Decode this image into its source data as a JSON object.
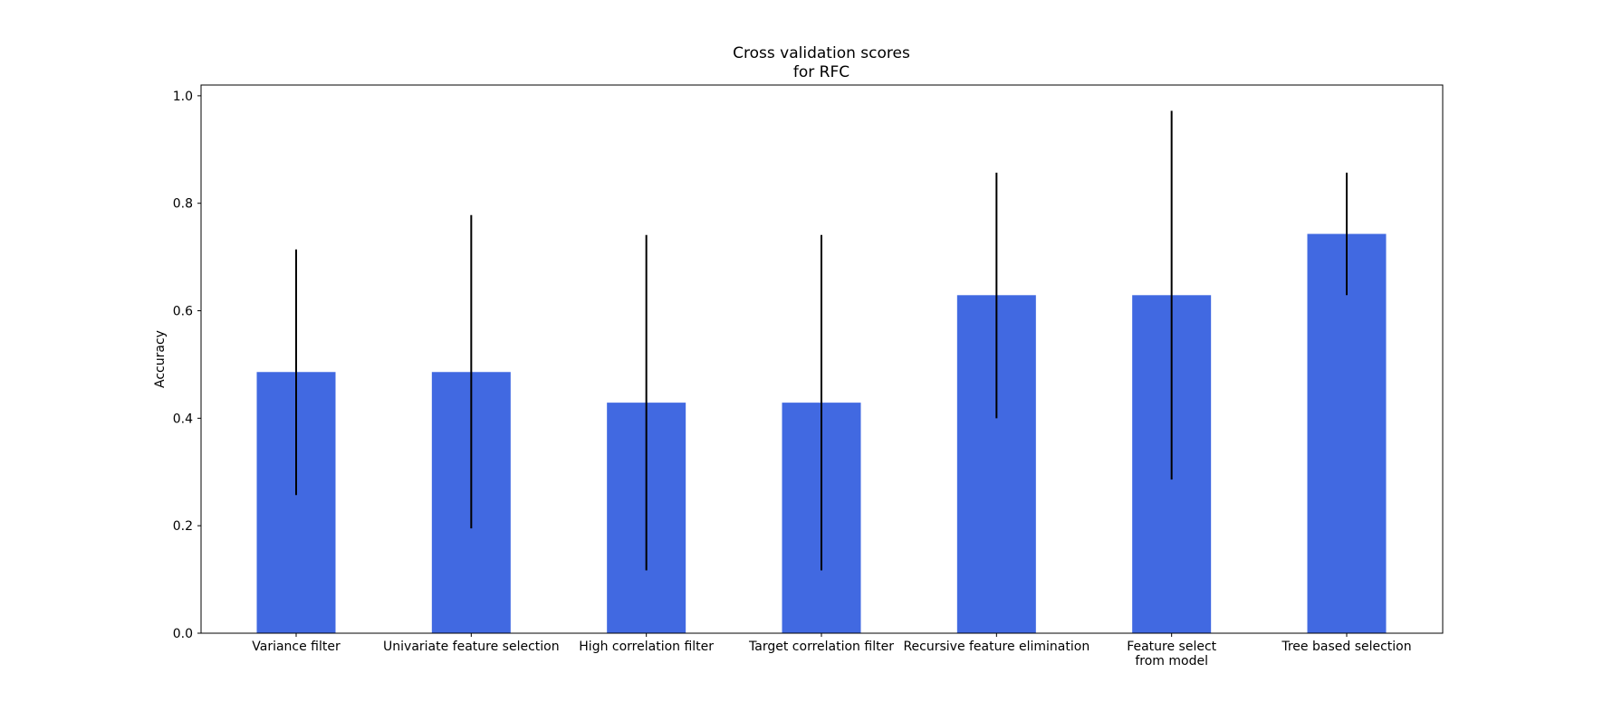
{
  "chart_data": {
    "type": "bar",
    "title_lines": [
      "Cross validation scores",
      "for RFC"
    ],
    "xlabel": "",
    "ylabel": "Accuracy",
    "ylim": [
      0,
      1.02
    ],
    "yticks": [
      "0.0",
      "0.2",
      "0.4",
      "0.6",
      "0.8",
      "1.0"
    ],
    "grid": false,
    "bar_color": "#4169e1",
    "categories": [
      [
        "Variance filter"
      ],
      [
        "Univariate feature selection"
      ],
      [
        "High correlation filter"
      ],
      [
        "Target correlation filter"
      ],
      [
        "Recursive feature elimination"
      ],
      [
        "Feature select",
        "from model"
      ],
      [
        "Tree based selection"
      ]
    ],
    "values": [
      0.486,
      0.486,
      0.429,
      0.429,
      0.629,
      0.629,
      0.743
    ],
    "error_low": [
      0.257,
      0.195,
      0.117,
      0.117,
      0.4,
      0.286,
      0.629
    ],
    "error_high": [
      0.714,
      0.778,
      0.741,
      0.741,
      0.857,
      0.972,
      0.857
    ]
  }
}
